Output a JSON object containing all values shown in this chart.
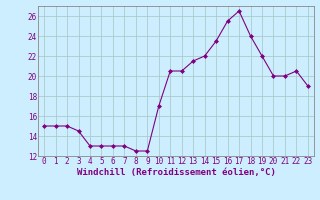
{
  "x": [
    0,
    1,
    2,
    3,
    4,
    5,
    6,
    7,
    8,
    9,
    10,
    11,
    12,
    13,
    14,
    15,
    16,
    17,
    18,
    19,
    20,
    21,
    22,
    23
  ],
  "y": [
    15,
    15,
    15,
    14.5,
    13,
    13,
    13,
    13,
    12.5,
    12.5,
    17,
    20.5,
    20.5,
    21.5,
    22,
    23.5,
    25.5,
    26.5,
    24,
    22,
    20,
    20,
    20.5,
    19
  ],
  "line_color": "#800080",
  "marker": "D",
  "marker_size": 2,
  "bg_color": "#cceeff",
  "grid_color": "#aacccc",
  "xlabel": "Windchill (Refroidissement éolien,°C)",
  "ylim": [
    12,
    27
  ],
  "xlim_min": -0.5,
  "xlim_max": 23.5,
  "yticks": [
    12,
    14,
    16,
    18,
    20,
    22,
    24,
    26
  ],
  "xticks": [
    0,
    1,
    2,
    3,
    4,
    5,
    6,
    7,
    8,
    9,
    10,
    11,
    12,
    13,
    14,
    15,
    16,
    17,
    18,
    19,
    20,
    21,
    22,
    23
  ],
  "xlabel_color": "#800080",
  "tick_color": "#800080",
  "font_size_xlabel": 6.5,
  "font_size_tick": 5.5
}
